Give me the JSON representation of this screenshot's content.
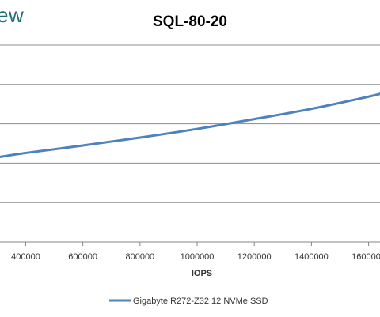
{
  "logo_fragment": "ew",
  "chart_data": {
    "type": "line",
    "title": "SQL-80-20",
    "xlabel": "IOPS",
    "ylabel": "",
    "x_ticks": [
      400000,
      600000,
      800000,
      1000000,
      1200000,
      1400000,
      1600000
    ],
    "x_tick_labels": [
      "400000",
      "600000",
      "800000",
      "1000000",
      "1200000",
      "1400000",
      "1600000"
    ],
    "xlim": [
      310000,
      1640000
    ],
    "ylim": [
      0,
      5
    ],
    "grid": true,
    "legend_position": "bottom",
    "series": [
      {
        "name": "Gigabyte R272-Z32 12 NVMe SSD",
        "color": "#4f81bd",
        "x": [
          310000,
          400000,
          600000,
          800000,
          1000000,
          1200000,
          1400000,
          1600000,
          1640000
        ],
        "y": [
          2.16,
          2.26,
          2.45,
          2.65,
          2.87,
          3.12,
          3.38,
          3.69,
          3.76
        ]
      }
    ]
  }
}
